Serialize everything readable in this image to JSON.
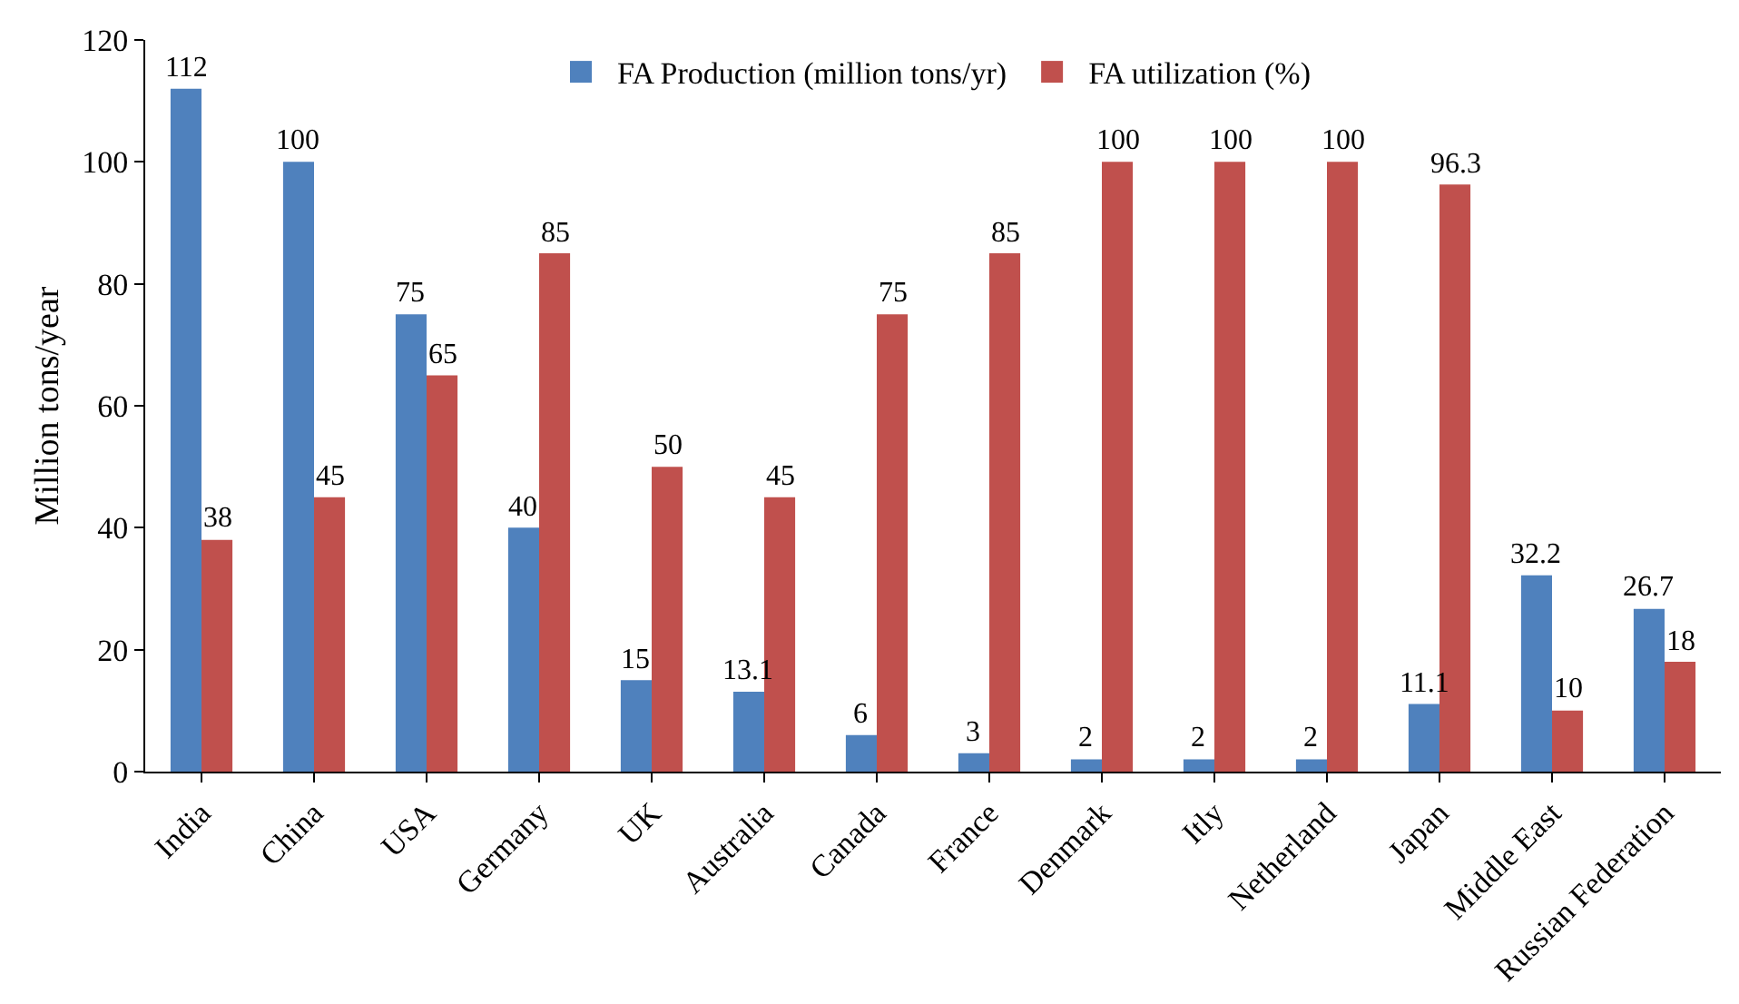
{
  "chart_data": {
    "type": "bar",
    "ylabel": "Million tons/year",
    "categories": [
      "India",
      "China",
      "USA",
      "Germany",
      "UK",
      "Australia",
      "Canada",
      "France",
      "Denmark",
      "Itly",
      "Netherland",
      "Japan",
      "Middle East",
      "Russian Federation"
    ],
    "series": [
      {
        "name": "FA Production (million tons/yr)",
        "color": "#4f81bd",
        "values": [
          112,
          100,
          75,
          40,
          15,
          13.1,
          6,
          3,
          2,
          2,
          2,
          11.1,
          32.2,
          26.7
        ]
      },
      {
        "name": "FA utilization (%)",
        "color": "#c0504d",
        "values": [
          38,
          45,
          65,
          85,
          50,
          45,
          75,
          85,
          100,
          100,
          100,
          96.3,
          10,
          18
        ]
      }
    ],
    "ylim": [
      0,
      120
    ],
    "yticks": [
      0,
      20,
      40,
      60,
      80,
      100,
      120
    ],
    "grid": false,
    "legend": "top",
    "data_labels": true
  }
}
